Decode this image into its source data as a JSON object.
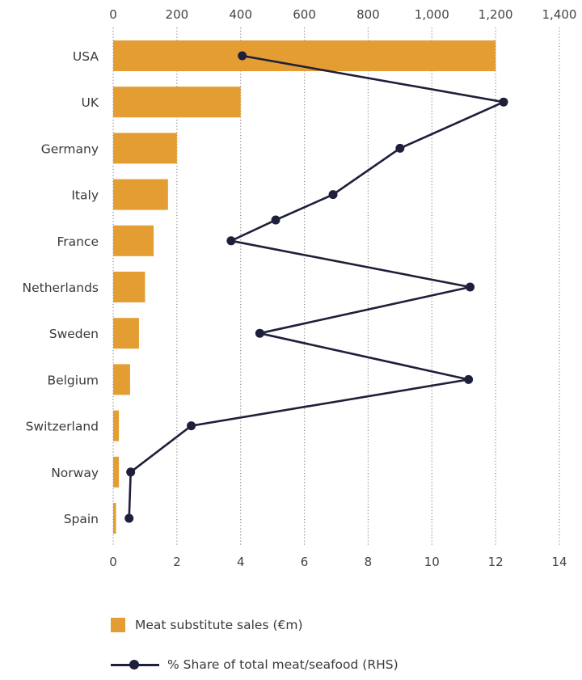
{
  "chart_data": {
    "type": "bar",
    "orientation": "horizontal",
    "title": "",
    "categories": [
      "USA",
      "UK",
      "Germany",
      "Italy",
      "France",
      "Netherlands",
      "Sweden",
      "Belgium",
      "Switzerland",
      "Norway",
      "Spain"
    ],
    "series": [
      {
        "name": "Meat substitute sales (€m)",
        "type": "bar",
        "axis": "top",
        "color": "#E39D33",
        "values": [
          1200,
          400,
          200,
          172,
          127,
          100,
          81,
          53,
          18,
          18,
          9
        ]
      },
      {
        "name": "% Share of total meat/seafood (RHS)",
        "type": "line",
        "axis": "bottom",
        "color": "#1E1F3A",
        "points": [
          {
            "category": "USA",
            "row": 0,
            "value": 4.05
          },
          {
            "category": "UK",
            "row": 1,
            "value": 12.25
          },
          {
            "category": "Germany",
            "row": 2,
            "value": 9.0
          },
          {
            "category": "Italy",
            "row": 3,
            "value": 6.9
          },
          {
            "category": "",
            "row": 3.55,
            "value": 5.1
          },
          {
            "category": "France",
            "row": 4,
            "value": 3.7
          },
          {
            "category": "Netherlands",
            "row": 5,
            "value": 11.2
          },
          {
            "category": "Sweden",
            "row": 6,
            "value": 4.6
          },
          {
            "category": "Belgium",
            "row": 7,
            "value": 11.15
          },
          {
            "category": "Switzerland",
            "row": 8,
            "value": 2.45
          },
          {
            "category": "Norway",
            "row": 9,
            "value": 0.55
          },
          {
            "category": "Spain",
            "row": 10,
            "value": 0.5
          }
        ]
      }
    ],
    "top_axis": {
      "label": "",
      "range": [
        0,
        1400
      ],
      "ticks": [
        0,
        200,
        400,
        600,
        800,
        1000,
        1200,
        1400
      ],
      "tick_labels": [
        "0",
        "200",
        "400",
        "600",
        "800",
        "1,000",
        "1,200",
        "1,400"
      ]
    },
    "bottom_axis": {
      "label": "",
      "range": [
        0,
        14
      ],
      "ticks": [
        0,
        2,
        4,
        6,
        8,
        10,
        12,
        14
      ],
      "tick_labels": [
        "0",
        "2",
        "4",
        "6",
        "8",
        "10",
        "12",
        "14"
      ]
    },
    "grid": "vertical-dotted",
    "legend_position": "bottom-left"
  },
  "legend": {
    "items": [
      {
        "label": "Meat substitute sales (€m)",
        "color": "#E39D33",
        "kind": "square"
      },
      {
        "label": "% Share of total meat/seafood (RHS)",
        "color": "#1E1F3A",
        "kind": "line-marker"
      }
    ]
  }
}
